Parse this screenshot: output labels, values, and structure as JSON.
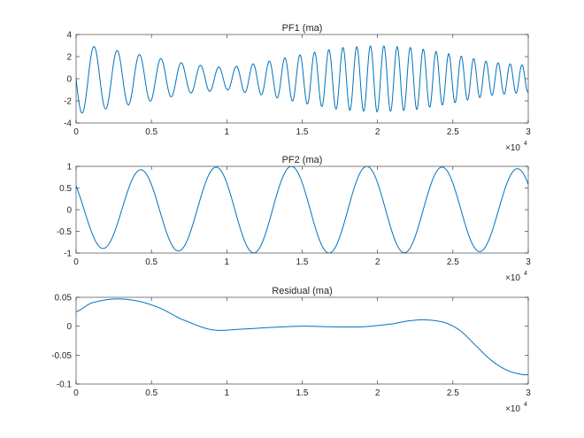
{
  "figure": {
    "line_color": "#0072BD",
    "axes_color": "#262626"
  },
  "chart_data": [
    {
      "type": "line",
      "title": "PF1 (ma)",
      "xlabel": "",
      "ylabel": "",
      "xlim": [
        0,
        30000
      ],
      "ylim": [
        -4,
        4
      ],
      "xticks": [
        0,
        5000,
        10000,
        15000,
        20000,
        25000,
        30000
      ],
      "xtick_labels": [
        "0",
        "0.5",
        "1",
        "1.5",
        "2",
        "2.5",
        "3"
      ],
      "yticks": [
        -4,
        -2,
        0,
        2,
        4
      ],
      "ytick_labels": [
        "-4",
        "-2",
        "0",
        "2",
        "4"
      ],
      "x_exponent": {
        "base": "×10",
        "power": "4"
      },
      "grid": false,
      "legend": "none",
      "series": [
        {
          "x": [
            0,
            2500,
            5000,
            7500,
            10000,
            12500,
            15000,
            17500,
            20000,
            22500,
            25000,
            27500,
            30000
          ],
          "envelope": [
            3.2,
            2.6,
            2.0,
            1.3,
            1.0,
            1.5,
            2.2,
            2.8,
            3.0,
            2.8,
            2.2,
            1.5,
            1.2
          ],
          "frequency": [
            0.00062,
            0.00066,
            0.0007,
            0.00078,
            0.00086,
            0.00094,
            0.00102,
            0.00108,
            0.00112,
            0.00116,
            0.0012,
            0.00124,
            0.00128
          ],
          "phase": 1.5708
        }
      ]
    },
    {
      "type": "line",
      "title": "PF2 (ma)",
      "xlabel": "",
      "ylabel": "",
      "xlim": [
        0,
        30000
      ],
      "ylim": [
        -1,
        1
      ],
      "xticks": [
        0,
        5000,
        10000,
        15000,
        20000,
        25000,
        30000
      ],
      "xtick_labels": [
        "0",
        "0.5",
        "1",
        "1.5",
        "2",
        "2.5",
        "3"
      ],
      "yticks": [
        -1,
        -0.5,
        0,
        0.5,
        1
      ],
      "ytick_labels": [
        "-1",
        "-0.5",
        "0",
        "0.5",
        "1"
      ],
      "x_exponent": {
        "base": "×10",
        "power": "4"
      },
      "grid": false,
      "legend": "none",
      "series": [
        {
          "x": [
            0,
            2500,
            5000,
            7500,
            10000,
            12500,
            15000,
            17500,
            20000,
            22500,
            25000,
            27500,
            30000
          ],
          "envelope": [
            0.88,
            0.9,
            0.93,
            0.96,
            0.99,
            1.0,
            1.0,
            1.0,
            1.0,
            0.99,
            0.98,
            0.96,
            0.94
          ],
          "frequency": [
            0.0002,
            0.0002,
            0.0002,
            0.0002,
            0.0002,
            0.0002,
            0.0002,
            0.0002,
            0.0002,
            0.0002,
            0.0002,
            0.0002,
            0.0002
          ],
          "phase": 0.9
        }
      ]
    },
    {
      "type": "line",
      "title": "Residual (ma)",
      "xlabel": "",
      "ylabel": "",
      "xlim": [
        0,
        30000
      ],
      "ylim": [
        -0.1,
        0.05
      ],
      "xticks": [
        0,
        5000,
        10000,
        15000,
        20000,
        25000,
        30000
      ],
      "xtick_labels": [
        "0",
        "0.5",
        "1",
        "1.5",
        "2",
        "2.5",
        "3"
      ],
      "yticks": [
        -0.1,
        -0.05,
        0,
        0.05
      ],
      "ytick_labels": [
        "-0.1",
        "-0.05",
        "0",
        "0.05"
      ],
      "x_exponent": {
        "base": "×10",
        "power": "4"
      },
      "grid": false,
      "legend": "none",
      "series": [
        {
          "x": [
            0,
            1000,
            2500,
            4000,
            5500,
            7000,
            9000,
            11000,
            13000,
            15000,
            17000,
            19000,
            21000,
            22000,
            23200,
            24500,
            25500,
            26500,
            27500,
            28500,
            29500,
            30000
          ],
          "y": [
            0.025,
            0.04,
            0.047,
            0.044,
            0.032,
            0.012,
            -0.006,
            -0.005,
            -0.002,
            0.0,
            -0.001,
            -0.001,
            0.004,
            0.009,
            0.011,
            0.006,
            -0.008,
            -0.033,
            -0.058,
            -0.075,
            -0.083,
            -0.084
          ]
        }
      ]
    }
  ]
}
